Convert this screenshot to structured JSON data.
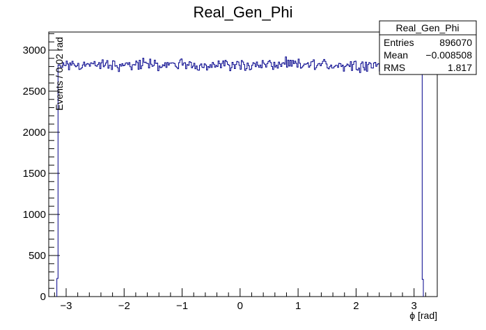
{
  "chart_data": {
    "type": "histogram",
    "title": "Real_Gen_Phi",
    "xlabel": "ϕ [rad]",
    "ylabel": "Events / 0.02 rad",
    "xlim": [
      -3.3,
      3.4
    ],
    "ylim": [
      0,
      3220
    ],
    "x_ticks": [
      -3,
      -2,
      -1,
      0,
      1,
      2,
      3
    ],
    "x_tick_labels": [
      "−3",
      "−2",
      "−1",
      "0",
      "1",
      "2",
      "3"
    ],
    "y_ticks": [
      0,
      500,
      1000,
      1500,
      2000,
      2500,
      3000
    ],
    "y_tick_labels": [
      "0",
      "500",
      "1000",
      "1500",
      "2000",
      "2500",
      "3000"
    ],
    "bin_width": 0.02,
    "edge_bins": [
      {
        "x_low": -3.16,
        "x_high": -3.14,
        "value": 220
      },
      {
        "x_low": 3.14,
        "x_high": 3.16,
        "value": 210
      }
    ],
    "plateau": {
      "x_low": -3.14,
      "x_high": 3.14,
      "approx_level": 2820,
      "min": 2700,
      "max": 3060
    },
    "stats_box": {
      "title": "Real_Gen_Phi",
      "rows": [
        {
          "label": "Entries",
          "value": "896070"
        },
        {
          "label": "Mean",
          "value": "−0.008508"
        },
        {
          "label": "RMS",
          "value": "1.817"
        }
      ]
    },
    "line_color": "#00008b",
    "grid": false,
    "legend": "top-right"
  }
}
